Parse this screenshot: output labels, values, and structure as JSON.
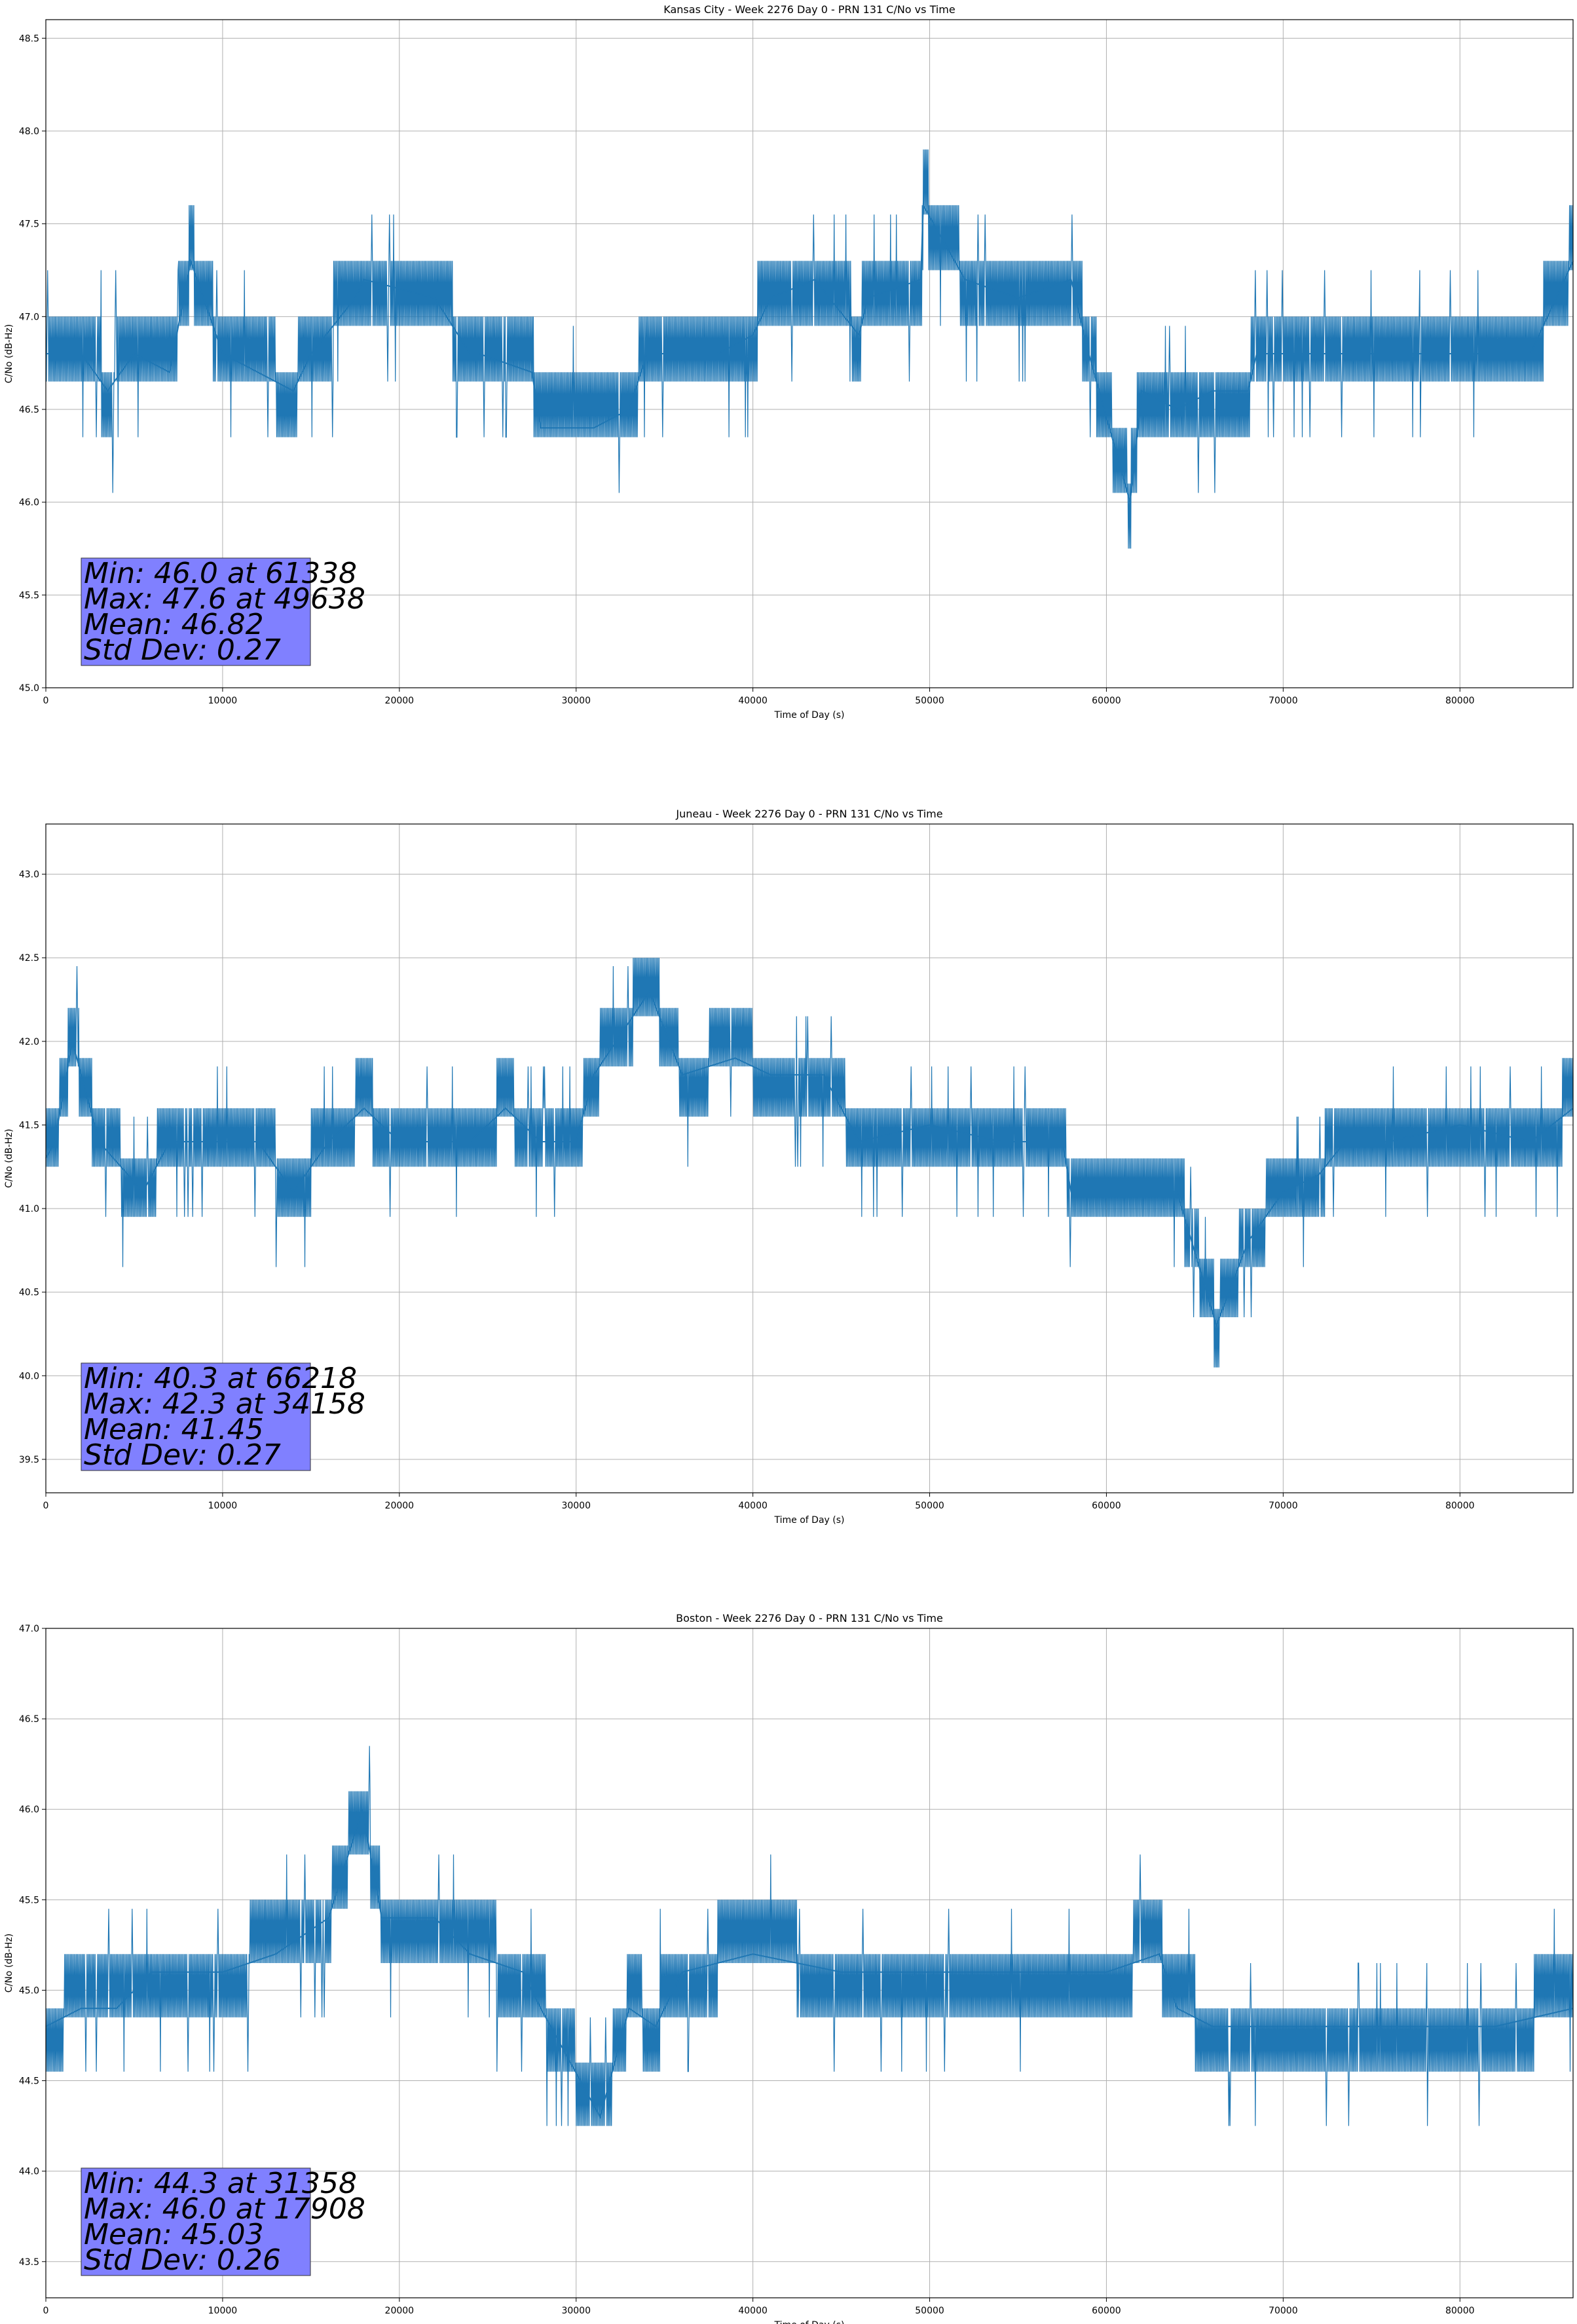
{
  "colors": {
    "line": "#1f77b4",
    "stats_box": "#8080ff",
    "grid": "#b0b0b0",
    "axes": "#000000"
  },
  "chart_data": [
    {
      "type": "line",
      "title": "Kansas City - Week 2276 Day 0 - PRN 131 C/No vs Time",
      "xlabel": "Time of Day (s)",
      "ylabel": "C/No (dB-Hz)",
      "xlim": [
        0,
        86400
      ],
      "ylim": [
        45.0,
        48.6
      ],
      "xticks": [
        0,
        10000,
        20000,
        30000,
        40000,
        50000,
        60000,
        70000,
        80000
      ],
      "yticks": [
        "45.0",
        "45.5",
        "46.0",
        "46.5",
        "47.0",
        "47.5",
        "48.0",
        "48.5"
      ],
      "grid": true,
      "series": [
        {
          "x": [
            0,
            2000,
            3500,
            5000,
            7000,
            8200,
            10000,
            14000,
            15000,
            17500,
            18000,
            22000,
            24000,
            24500,
            27500,
            28000,
            31000,
            33000,
            34000,
            38000,
            40000,
            41000,
            43500,
            46000,
            46500,
            49500,
            49638,
            52000,
            55000,
            58000,
            59000,
            61338,
            62000,
            64000,
            66000,
            68000,
            68500,
            72000,
            76000,
            80000,
            84000,
            86400
          ],
          "y": [
            46.8,
            46.8,
            46.6,
            46.8,
            46.7,
            47.3,
            46.8,
            46.6,
            46.8,
            47.1,
            47.2,
            47.1,
            46.8,
            46.8,
            46.7,
            46.4,
            46.4,
            46.5,
            46.8,
            46.8,
            46.9,
            47.1,
            47.2,
            46.9,
            47.1,
            47.2,
            47.6,
            47.2,
            47.1,
            47.2,
            46.8,
            46.0,
            46.6,
            46.5,
            46.6,
            46.6,
            46.8,
            46.8,
            46.8,
            46.8,
            46.8,
            47.3
          ]
        }
      ],
      "stats_lines": [
        "Min: 46.0 at 61338",
        "Max: 47.6 at 49638",
        "Mean: 46.82",
        "Std Dev: 0.27"
      ]
    },
    {
      "type": "line",
      "title": "Juneau - Week 2276 Day 0 - PRN 131 C/No vs Time",
      "xlabel": "Time of Day (s)",
      "ylabel": "C/No (dB-Hz)",
      "xlim": [
        0,
        86400
      ],
      "ylim": [
        39.3,
        43.3
      ],
      "xticks": [
        0,
        10000,
        20000,
        30000,
        40000,
        50000,
        60000,
        70000,
        80000
      ],
      "yticks": [
        "39.5",
        "40.0",
        "40.5",
        "41.0",
        "41.5",
        "42.0",
        "42.5",
        "43.0"
      ],
      "grid": true,
      "series": [
        {
          "x": [
            0,
            500,
            1500,
            3000,
            5500,
            7000,
            9000,
            12000,
            14000,
            16000,
            18000,
            20000,
            24000,
            26000,
            28000,
            30000,
            31000,
            34158,
            36000,
            39000,
            41000,
            44000,
            46000,
            50000,
            54000,
            57500,
            58000,
            62000,
            64000,
            66218,
            68000,
            70000,
            72000,
            73500,
            76000,
            80000,
            84000,
            86400
          ],
          "y": [
            41.3,
            41.4,
            42.0,
            41.4,
            41.1,
            41.4,
            41.4,
            41.4,
            41.1,
            41.4,
            41.6,
            41.4,
            41.4,
            41.6,
            41.4,
            41.4,
            41.8,
            42.3,
            41.8,
            41.9,
            41.8,
            41.8,
            41.4,
            41.5,
            41.4,
            41.4,
            41.1,
            41.1,
            41.1,
            40.3,
            40.8,
            41.1,
            41.2,
            41.4,
            41.4,
            41.5,
            41.4,
            41.6
          ]
        }
      ],
      "stats_lines": [
        "Min: 40.3 at 66218",
        "Max: 42.3 at 34158",
        "Mean: 41.45",
        "Std Dev: 0.27"
      ]
    },
    {
      "type": "line",
      "title": "Boston - Week 2276 Day 0 - PRN 131 C/No vs Time",
      "xlabel": "Time of Day (s)",
      "ylabel": "C/No (dB-Hz)",
      "xlim": [
        0,
        86400
      ],
      "ylim": [
        43.3,
        47.0
      ],
      "xticks": [
        0,
        10000,
        20000,
        30000,
        40000,
        50000,
        60000,
        70000,
        80000
      ],
      "yticks": [
        "43.5",
        "44.0",
        "44.5",
        "45.0",
        "45.5",
        "46.0",
        "46.5",
        "47.0"
      ],
      "grid": true,
      "series": [
        {
          "x": [
            0,
            2000,
            4000,
            6000,
            8000,
            10000,
            13000,
            16000,
            17908,
            19000,
            22000,
            24000,
            27000,
            28000,
            31358,
            33000,
            34500,
            36000,
            40000,
            45000,
            50000,
            55000,
            60000,
            63000,
            64000,
            66000,
            70000,
            74000,
            78000,
            82000,
            86400
          ],
          "y": [
            44.8,
            44.9,
            44.9,
            45.1,
            45.1,
            45.1,
            45.2,
            45.4,
            46.0,
            45.4,
            45.4,
            45.2,
            45.1,
            44.9,
            44.3,
            44.9,
            44.8,
            45.1,
            45.2,
            45.1,
            45.1,
            45.1,
            45.1,
            45.2,
            44.9,
            44.8,
            44.8,
            44.8,
            44.8,
            44.8,
            44.9
          ]
        }
      ],
      "stats_lines": [
        "Min: 44.3 at 31358",
        "Max: 46.0 at 17908",
        "Mean: 45.03",
        "Std Dev: 0.26"
      ]
    }
  ]
}
